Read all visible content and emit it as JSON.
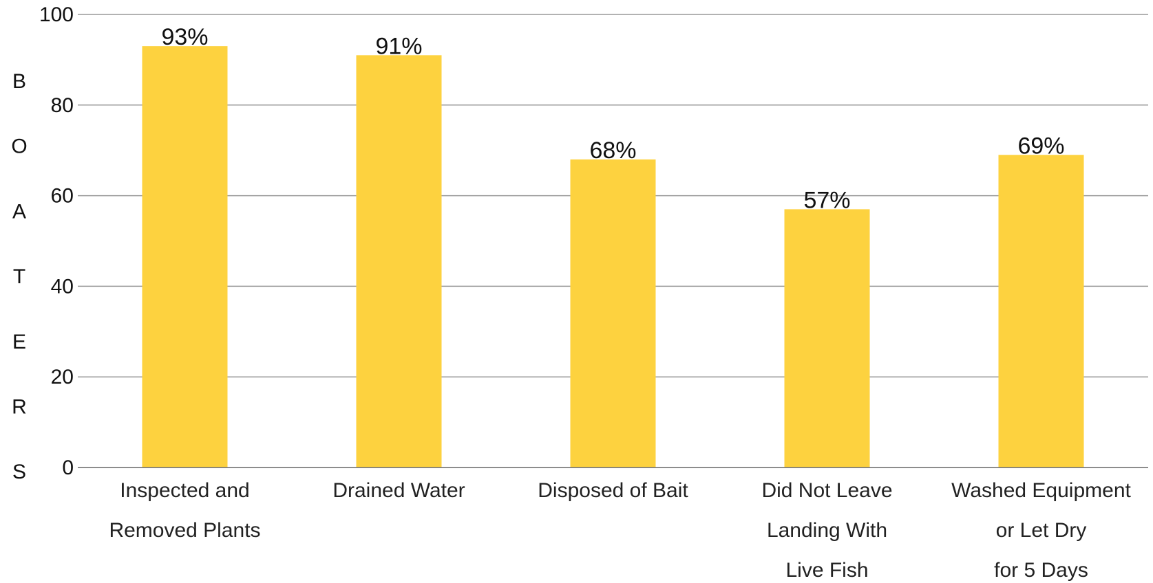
{
  "chart_data": {
    "type": "bar",
    "title": "",
    "xlabel": "",
    "ylabel": "BOATERS",
    "categories": [
      [
        "Inspected and",
        "Removed Plants"
      ],
      [
        "Drained Water"
      ],
      [
        "Disposed of Bait"
      ],
      [
        "Did Not Leave",
        "Landing With",
        "Live Fish"
      ],
      [
        "Washed Equipment",
        "or Let Dry",
        "for 5 Days"
      ]
    ],
    "values": [
      93,
      91,
      68,
      57,
      69
    ],
    "data_labels": [
      "93%",
      "91%",
      "68%",
      "57%",
      "69%"
    ],
    "ylim": [
      0,
      100
    ],
    "yticks": [
      0,
      20,
      40,
      60,
      80,
      100
    ],
    "grid": true,
    "bar_color": "#FDD23F"
  }
}
